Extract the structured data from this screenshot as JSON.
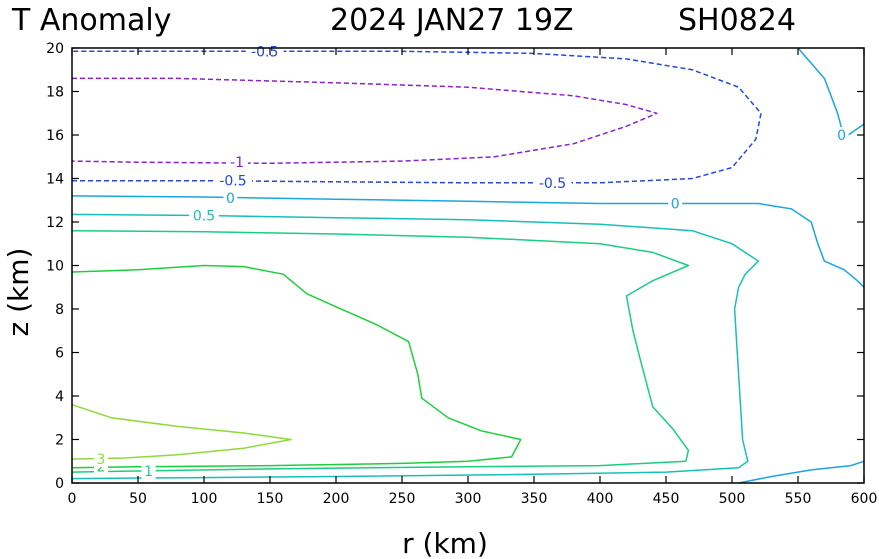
{
  "header": {
    "title_left": "T Anomaly",
    "title_date": "2024 JAN27 19Z",
    "title_storm": "SH0824"
  },
  "chart_data": {
    "type": "contour",
    "xlabel": "r (km)",
    "ylabel": "z (km)",
    "xlim": [
      0,
      600
    ],
    "ylim": [
      0,
      20
    ],
    "xticks": [
      0,
      50,
      100,
      150,
      200,
      250,
      300,
      350,
      400,
      450,
      500,
      550,
      600
    ],
    "yticks": [
      0,
      2,
      4,
      6,
      8,
      10,
      12,
      14,
      16,
      18,
      20
    ],
    "grid": false,
    "contours": [
      {
        "level": -1,
        "label": "-1",
        "color": "#8c1fd2",
        "dashed": true,
        "points": [
          [
            0,
            18.6
          ],
          [
            80,
            18.6
          ],
          [
            200,
            18.4
          ],
          [
            300,
            18.2
          ],
          [
            380,
            17.8
          ],
          [
            420,
            17.4
          ],
          [
            443,
            17.0
          ],
          [
            420,
            16.4
          ],
          [
            380,
            15.6
          ],
          [
            320,
            15.0
          ],
          [
            250,
            14.8
          ],
          [
            150,
            14.7
          ],
          [
            50,
            14.75
          ],
          [
            0,
            14.8
          ]
        ],
        "label_pos": [
          [
            125,
            14.75
          ]
        ]
      },
      {
        "level": -0.5,
        "label": "-0.5",
        "color": "#2347d8",
        "dashed": true,
        "points": [
          [
            0,
            13.9
          ],
          [
            100,
            13.9
          ],
          [
            200,
            13.85
          ],
          [
            300,
            13.8
          ],
          [
            400,
            13.8
          ],
          [
            470,
            14.0
          ],
          [
            500,
            14.5
          ],
          [
            518,
            15.8
          ],
          [
            522,
            17.0
          ],
          [
            505,
            18.2
          ],
          [
            470,
            19.0
          ],
          [
            420,
            19.5
          ],
          [
            350,
            19.75
          ],
          [
            250,
            19.85
          ],
          [
            150,
            19.85
          ],
          [
            0,
            19.85
          ]
        ],
        "label_pos": [
          [
            122,
            13.9
          ],
          [
            364,
            13.8
          ],
          [
            146,
            19.85
          ]
        ]
      },
      {
        "level": 0,
        "label": "0",
        "color": "#1aa6e0",
        "dashed": false,
        "points": [
          [
            0,
            13.2
          ],
          [
            100,
            13.15
          ],
          [
            200,
            13.05
          ],
          [
            300,
            12.95
          ],
          [
            400,
            12.85
          ],
          [
            460,
            12.85
          ],
          [
            520,
            12.85
          ],
          [
            545,
            12.6
          ],
          [
            560,
            12.0
          ],
          [
            565,
            11.0
          ],
          [
            570,
            10.2
          ],
          [
            585,
            9.8
          ],
          [
            595,
            9.3
          ],
          [
            600,
            9.0
          ]
        ],
        "label_pos": [
          [
            120,
            13.1
          ],
          [
            457,
            12.85
          ]
        ]
      },
      {
        "level": 0,
        "label": "0",
        "color": "#1aa6e0",
        "dashed": false,
        "points": [
          [
            550,
            20
          ],
          [
            560,
            19.3
          ],
          [
            570,
            18.6
          ],
          [
            575,
            17.8
          ],
          [
            580,
            17.0
          ],
          [
            583,
            16.3
          ],
          [
            588,
            16.0
          ],
          [
            600,
            16.5
          ]
        ],
        "label_pos": [
          [
            583,
            16.0
          ]
        ]
      },
      {
        "level": 0,
        "label": "",
        "color": "#1aa6e0",
        "dashed": false,
        "points": [
          [
            505,
            0
          ],
          [
            530,
            0.3
          ],
          [
            560,
            0.6
          ],
          [
            590,
            0.8
          ],
          [
            600,
            1.0
          ]
        ],
        "label_pos": []
      },
      {
        "level": 0.5,
        "label": "0.5",
        "color": "#16c0b8",
        "dashed": false,
        "points": [
          [
            0,
            12.35
          ],
          [
            100,
            12.3
          ],
          [
            200,
            12.2
          ],
          [
            300,
            12.1
          ],
          [
            400,
            11.9
          ],
          [
            470,
            11.6
          ],
          [
            500,
            11.0
          ],
          [
            520,
            10.2
          ],
          [
            510,
            9.6
          ],
          [
            505,
            9.0
          ],
          [
            502,
            8.0
          ],
          [
            505,
            5.0
          ],
          [
            508,
            2.0
          ],
          [
            512,
            1.0
          ],
          [
            505,
            0.7
          ],
          [
            450,
            0.5
          ],
          [
            350,
            0.4
          ],
          [
            200,
            0.3
          ],
          [
            100,
            0.25
          ],
          [
            0,
            0.2
          ]
        ],
        "label_pos": [
          [
            100,
            12.3
          ]
        ]
      },
      {
        "level": 1,
        "label": "1",
        "color": "#19ce83",
        "dashed": false,
        "points": [
          [
            0,
            11.6
          ],
          [
            100,
            11.55
          ],
          [
            200,
            11.45
          ],
          [
            300,
            11.3
          ],
          [
            400,
            11.0
          ],
          [
            440,
            10.6
          ],
          [
            467,
            10.0
          ],
          [
            440,
            9.3
          ],
          [
            420,
            8.6
          ],
          [
            425,
            7.0
          ],
          [
            430,
            5.8
          ],
          [
            440,
            3.5
          ],
          [
            455,
            2.5
          ],
          [
            467,
            1.5
          ],
          [
            465,
            1.0
          ],
          [
            400,
            0.8
          ],
          [
            300,
            0.75
          ],
          [
            150,
            0.65
          ],
          [
            50,
            0.55
          ],
          [
            0,
            0.5
          ]
        ],
        "label_pos": [
          [
            58,
            0.55
          ]
        ]
      },
      {
        "level": 2,
        "label": "2",
        "color": "#1ecf3c",
        "dashed": false,
        "points": [
          [
            0,
            9.7
          ],
          [
            50,
            9.8
          ],
          [
            100,
            10.0
          ],
          [
            130,
            9.95
          ],
          [
            160,
            9.6
          ],
          [
            178,
            8.7
          ],
          [
            200,
            8.1
          ],
          [
            230,
            7.3
          ],
          [
            255,
            6.5
          ],
          [
            262,
            5.0
          ],
          [
            265,
            3.9
          ],
          [
            285,
            3.0
          ],
          [
            310,
            2.4
          ],
          [
            340,
            2.0
          ],
          [
            333,
            1.2
          ],
          [
            300,
            1.0
          ],
          [
            250,
            0.9
          ],
          [
            150,
            0.8
          ],
          [
            50,
            0.75
          ],
          [
            0,
            0.7
          ]
        ],
        "label_pos": [
          [
            22,
            0.75
          ]
        ]
      },
      {
        "level": 3,
        "label": "3",
        "color": "#8fd93a",
        "dashed": false,
        "points": [
          [
            0,
            3.6
          ],
          [
            30,
            3.0
          ],
          [
            80,
            2.6
          ],
          [
            130,
            2.3
          ],
          [
            166,
            2.0
          ],
          [
            130,
            1.6
          ],
          [
            80,
            1.3
          ],
          [
            40,
            1.15
          ],
          [
            0,
            1.1
          ]
        ],
        "label_pos": [
          [
            22,
            1.1
          ]
        ]
      }
    ]
  }
}
